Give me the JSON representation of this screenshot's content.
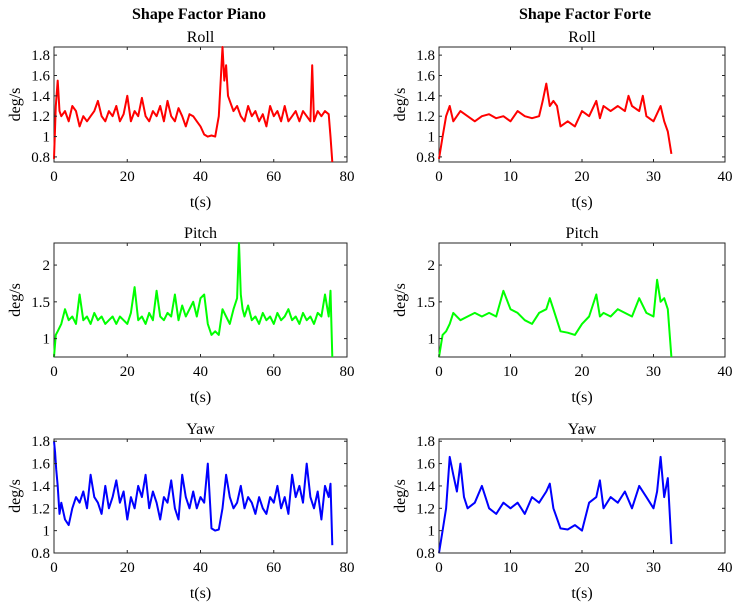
{
  "column_titles": [
    "Shape Factor Piano",
    "Shape Factor Forte"
  ],
  "chart_data": [
    {
      "type": "line",
      "column": "Shape Factor Piano",
      "title": "Roll",
      "xlabel": "t(s)",
      "ylabel": "deg/s",
      "xlim": [
        0,
        80
      ],
      "ylim": [
        0.75,
        1.88
      ],
      "xticks": [
        0,
        20,
        40,
        60,
        80
      ],
      "yticks": [
        0.8,
        1,
        1.2,
        1.4,
        1.6,
        1.8
      ],
      "ytick_labels": [
        "0.8",
        "1",
        "1.2",
        "1.4",
        "1.6",
        "1.8"
      ],
      "color": "#ff0000",
      "grid": false,
      "x": [
        0,
        0.5,
        1,
        1.5,
        2,
        3,
        4,
        5,
        6,
        7,
        8,
        9,
        10,
        11,
        12,
        13,
        14,
        15,
        16,
        17,
        18,
        19,
        20,
        21,
        22,
        23,
        24,
        25,
        26,
        27,
        28,
        29,
        30,
        31,
        32,
        33,
        34,
        35,
        36,
        37,
        38,
        39,
        40,
        41,
        42,
        43,
        44,
        45,
        46,
        46.5,
        47,
        47.5,
        48,
        49,
        50,
        51,
        52,
        53,
        54,
        55,
        56,
        57,
        58,
        59,
        60,
        61,
        62,
        63,
        64,
        65,
        66,
        67,
        68,
        69,
        70,
        70.5,
        71,
        72,
        73,
        74,
        75,
        75.5,
        76
      ],
      "y": [
        0.78,
        1.3,
        1.55,
        1.25,
        1.2,
        1.25,
        1.15,
        1.3,
        1.25,
        1.1,
        1.2,
        1.15,
        1.2,
        1.25,
        1.35,
        1.2,
        1.15,
        1.25,
        1.2,
        1.3,
        1.15,
        1.22,
        1.4,
        1.15,
        1.25,
        1.2,
        1.38,
        1.2,
        1.15,
        1.25,
        1.2,
        1.3,
        1.15,
        1.35,
        1.2,
        1.15,
        1.28,
        1.2,
        1.1,
        1.22,
        1.2,
        1.15,
        1.1,
        1.02,
        1.0,
        1.01,
        1.0,
        1.2,
        1.88,
        1.55,
        1.7,
        1.4,
        1.35,
        1.25,
        1.3,
        1.2,
        1.15,
        1.3,
        1.2,
        1.25,
        1.15,
        1.22,
        1.1,
        1.3,
        1.2,
        1.25,
        1.15,
        1.3,
        1.15,
        1.2,
        1.25,
        1.15,
        1.25,
        1.2,
        1.15,
        1.7,
        1.15,
        1.25,
        1.2,
        1.25,
        1.22,
        1.0,
        0.75
      ]
    },
    {
      "type": "line",
      "column": "Shape Factor Forte",
      "title": "Roll",
      "xlabel": "t(s)",
      "ylabel": "deg/s",
      "xlim": [
        0,
        40
      ],
      "ylim": [
        0.75,
        1.88
      ],
      "xticks": [
        0,
        10,
        20,
        30,
        40
      ],
      "yticks": [
        0.8,
        1,
        1.2,
        1.4,
        1.6,
        1.8
      ],
      "ytick_labels": [
        "0.8",
        "1",
        "1.2",
        "1.4",
        "1.6",
        "1.8"
      ],
      "color": "#ff0000",
      "grid": false,
      "x": [
        0,
        0.5,
        1,
        1.5,
        2,
        3,
        4,
        5,
        6,
        7,
        8,
        9,
        10,
        11,
        12,
        13,
        14,
        14.5,
        15,
        15.5,
        16,
        16.5,
        17,
        18,
        19,
        20,
        21,
        22,
        22.5,
        23,
        24,
        25,
        26,
        26.5,
        27,
        28,
        28.5,
        29,
        30,
        31,
        31.5,
        32,
        32.5
      ],
      "y": [
        0.78,
        1.0,
        1.2,
        1.3,
        1.15,
        1.25,
        1.2,
        1.15,
        1.2,
        1.22,
        1.18,
        1.2,
        1.15,
        1.25,
        1.2,
        1.18,
        1.2,
        1.35,
        1.52,
        1.3,
        1.35,
        1.3,
        1.1,
        1.15,
        1.1,
        1.25,
        1.2,
        1.35,
        1.18,
        1.3,
        1.25,
        1.3,
        1.25,
        1.4,
        1.3,
        1.25,
        1.4,
        1.2,
        1.15,
        1.3,
        1.15,
        1.05,
        0.83
      ]
    },
    {
      "type": "line",
      "column": "Shape Factor Piano",
      "title": "Pitch",
      "xlabel": "t(s)",
      "ylabel": "deg/s",
      "xlim": [
        0,
        80
      ],
      "ylim": [
        0.75,
        2.3
      ],
      "xticks": [
        0,
        20,
        40,
        60,
        80
      ],
      "yticks": [
        1,
        1.5,
        2
      ],
      "ytick_labels": [
        "1",
        "1.5",
        "2"
      ],
      "color": "#00ff00",
      "grid": false,
      "x": [
        0,
        0.5,
        1,
        2,
        3,
        4,
        5,
        6,
        7,
        8,
        9,
        10,
        11,
        12,
        13,
        14,
        15,
        16,
        17,
        18,
        19,
        20,
        21,
        22,
        23,
        24,
        25,
        26,
        27,
        28,
        29,
        30,
        31,
        32,
        33,
        34,
        35,
        36,
        37,
        38,
        39,
        40,
        41,
        42,
        43,
        44,
        45,
        46,
        47,
        48,
        49,
        50,
        50.5,
        51,
        51.5,
        52,
        53,
        54,
        55,
        56,
        57,
        58,
        59,
        60,
        61,
        62,
        63,
        64,
        65,
        66,
        67,
        68,
        69,
        70,
        71,
        72,
        73,
        74,
        75,
        75.5,
        76
      ],
      "y": [
        0.75,
        1.05,
        1.1,
        1.2,
        1.4,
        1.25,
        1.3,
        1.2,
        1.6,
        1.25,
        1.3,
        1.2,
        1.35,
        1.25,
        1.3,
        1.2,
        1.25,
        1.3,
        1.2,
        1.3,
        1.25,
        1.2,
        1.35,
        1.7,
        1.25,
        1.3,
        1.2,
        1.35,
        1.25,
        1.65,
        1.3,
        1.25,
        1.35,
        1.3,
        1.6,
        1.25,
        1.45,
        1.3,
        1.4,
        1.5,
        1.3,
        1.55,
        1.6,
        1.2,
        1.05,
        1.1,
        1.05,
        1.4,
        1.3,
        1.2,
        1.4,
        1.55,
        2.3,
        1.6,
        1.4,
        1.3,
        1.45,
        1.25,
        1.3,
        1.2,
        1.35,
        1.25,
        1.3,
        1.2,
        1.35,
        1.25,
        1.3,
        1.4,
        1.25,
        1.3,
        1.2,
        1.35,
        1.25,
        1.3,
        1.2,
        1.35,
        1.3,
        1.6,
        1.3,
        1.65,
        0.75
      ]
    },
    {
      "type": "line",
      "column": "Shape Factor Forte",
      "title": "Pitch",
      "xlabel": "t(s)",
      "ylabel": "deg/s",
      "xlim": [
        0,
        40
      ],
      "ylim": [
        0.75,
        2.3
      ],
      "xticks": [
        0,
        10,
        20,
        30,
        40
      ],
      "yticks": [
        1,
        1.5,
        2
      ],
      "ytick_labels": [
        "1",
        "1.5",
        "2"
      ],
      "color": "#00ff00",
      "grid": false,
      "x": [
        0,
        0.5,
        1,
        1.5,
        2,
        3,
        4,
        5,
        6,
        7,
        8,
        9,
        10,
        11,
        12,
        13,
        14,
        15,
        15.5,
        16,
        17,
        18,
        19,
        20,
        21,
        22,
        22.5,
        23,
        24,
        25,
        26,
        27,
        28,
        29,
        30,
        30.5,
        31,
        31.5,
        32,
        32.5
      ],
      "y": [
        0.75,
        1.05,
        1.1,
        1.2,
        1.35,
        1.25,
        1.3,
        1.35,
        1.3,
        1.35,
        1.3,
        1.65,
        1.4,
        1.35,
        1.25,
        1.2,
        1.35,
        1.4,
        1.55,
        1.4,
        1.1,
        1.08,
        1.05,
        1.2,
        1.3,
        1.6,
        1.3,
        1.35,
        1.3,
        1.4,
        1.35,
        1.3,
        1.55,
        1.35,
        1.3,
        1.8,
        1.5,
        1.55,
        1.4,
        0.75
      ]
    },
    {
      "type": "line",
      "column": "Shape Factor Piano",
      "title": "Yaw",
      "xlabel": "t(s)",
      "ylabel": "deg/s",
      "xlim": [
        0,
        80
      ],
      "ylim": [
        0.8,
        1.82
      ],
      "xticks": [
        0,
        20,
        40,
        60,
        80
      ],
      "yticks": [
        0.8,
        1,
        1.2,
        1.4,
        1.6,
        1.8
      ],
      "ytick_labels": [
        "0.8",
        "1",
        "1.2",
        "1.4",
        "1.6",
        "1.8"
      ],
      "color": "#0000ff",
      "grid": false,
      "x": [
        0,
        0.3,
        0.6,
        1,
        1.5,
        2,
        3,
        4,
        5,
        6,
        7,
        8,
        9,
        10,
        11,
        12,
        13,
        14,
        15,
        16,
        17,
        18,
        19,
        20,
        21,
        22,
        23,
        24,
        25,
        26,
        27,
        28,
        29,
        30,
        31,
        32,
        33,
        34,
        35,
        36,
        37,
        38,
        39,
        40,
        41,
        42,
        43,
        44,
        45,
        46,
        47,
        48,
        49,
        50,
        51,
        52,
        53,
        54,
        55,
        56,
        57,
        58,
        59,
        60,
        61,
        62,
        63,
        64,
        65,
        66,
        67,
        68,
        69,
        70,
        71,
        72,
        73,
        74,
        75,
        75.5,
        76
      ],
      "y": [
        1.8,
        1.7,
        1.55,
        1.4,
        1.15,
        1.25,
        1.1,
        1.05,
        1.2,
        1.3,
        1.25,
        1.35,
        1.2,
        1.5,
        1.3,
        1.25,
        1.15,
        1.4,
        1.2,
        1.3,
        1.45,
        1.25,
        1.35,
        1.1,
        1.3,
        1.2,
        1.4,
        1.3,
        1.5,
        1.2,
        1.35,
        1.25,
        1.1,
        1.3,
        1.25,
        1.45,
        1.2,
        1.1,
        1.5,
        1.3,
        1.2,
        1.35,
        1.2,
        1.3,
        1.25,
        1.6,
        1.02,
        1.0,
        1.01,
        1.2,
        1.5,
        1.3,
        1.2,
        1.25,
        1.4,
        1.2,
        1.3,
        1.25,
        1.15,
        1.3,
        1.2,
        1.15,
        1.3,
        1.25,
        1.4,
        1.2,
        1.3,
        1.15,
        1.5,
        1.3,
        1.4,
        1.25,
        1.6,
        1.3,
        1.2,
        1.35,
        1.1,
        1.4,
        1.3,
        1.42,
        0.87
      ]
    },
    {
      "type": "line",
      "column": "Shape Factor Forte",
      "title": "Yaw",
      "xlabel": "t(s)",
      "ylabel": "deg/s",
      "xlim": [
        0,
        40
      ],
      "ylim": [
        0.8,
        1.82
      ],
      "xticks": [
        0,
        10,
        20,
        30,
        40
      ],
      "yticks": [
        0.8,
        1,
        1.2,
        1.4,
        1.6,
        1.8
      ],
      "ytick_labels": [
        "0.8",
        "1",
        "1.2",
        "1.4",
        "1.6",
        "1.8"
      ],
      "color": "#0000ff",
      "grid": false,
      "x": [
        0,
        0.5,
        1,
        1.5,
        2,
        2.5,
        3,
        3.5,
        4,
        5,
        6,
        7,
        8,
        9,
        10,
        11,
        12,
        13,
        14,
        15,
        15.5,
        16,
        17,
        18,
        19,
        20,
        21,
        22,
        22.5,
        23,
        24,
        25,
        26,
        27,
        28,
        29,
        30,
        30.5,
        31,
        31.5,
        32,
        32.5
      ],
      "y": [
        0.8,
        1.0,
        1.2,
        1.66,
        1.5,
        1.35,
        1.6,
        1.3,
        1.2,
        1.25,
        1.4,
        1.2,
        1.15,
        1.25,
        1.2,
        1.25,
        1.15,
        1.3,
        1.25,
        1.35,
        1.42,
        1.2,
        1.02,
        1.01,
        1.05,
        1.0,
        1.25,
        1.3,
        1.45,
        1.2,
        1.3,
        1.25,
        1.35,
        1.2,
        1.4,
        1.3,
        1.2,
        1.35,
        1.66,
        1.3,
        1.47,
        0.88
      ]
    }
  ]
}
